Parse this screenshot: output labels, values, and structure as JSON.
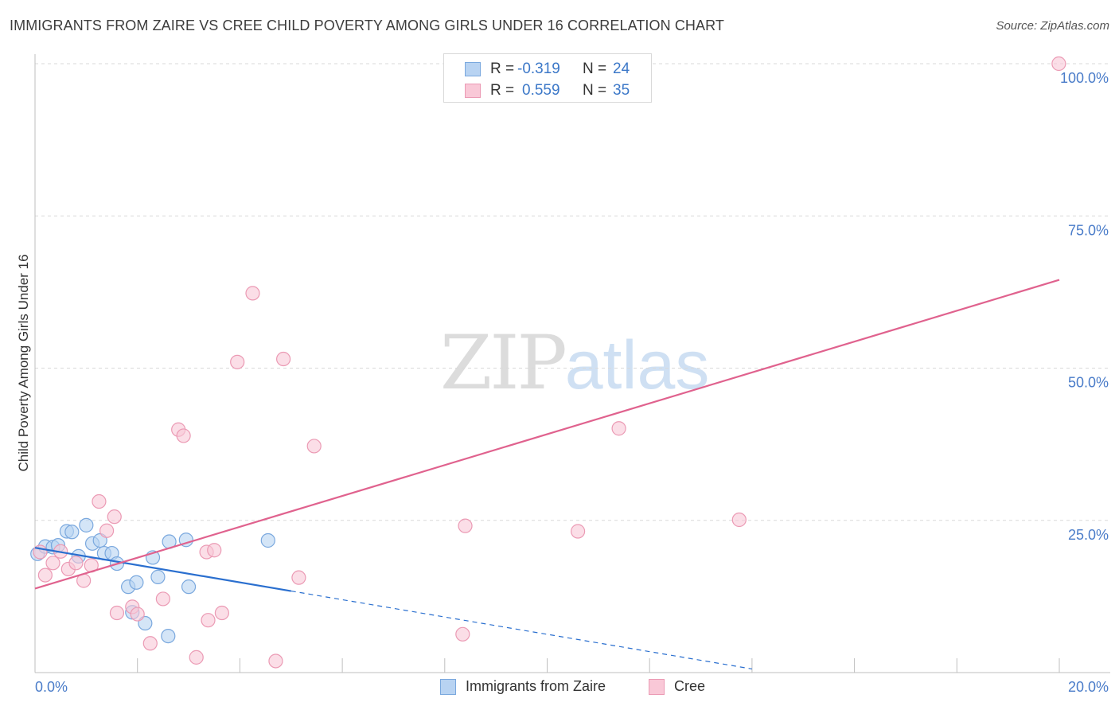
{
  "title": "IMMIGRANTS FROM ZAIRE VS CREE CHILD POVERTY AMONG GIRLS UNDER 16 CORRELATION CHART",
  "source": "Source: ZipAtlas.com",
  "watermark": {
    "zip": "ZIP",
    "atlas": "atlas"
  },
  "legend_top": [
    {
      "r_label": "R =",
      "r_value": "-0.319",
      "n_label": "N =",
      "n_value": "24"
    },
    {
      "r_label": "R =",
      "r_value": "0.559",
      "n_label": "N =",
      "n_value": "35"
    }
  ],
  "colors": {
    "zaire_fill": "#b8d3f2",
    "zaire_stroke": "#7aa8de",
    "zaire_line": "#2a6fcf",
    "cree_fill": "#f9c8d7",
    "cree_stroke": "#eb9ab4",
    "cree_line": "#e0628e",
    "grid": "#d9d9d9",
    "axis_text": "#4a7cc9"
  },
  "chart_data": {
    "type": "scatter",
    "title": "IMMIGRANTS FROM ZAIRE VS CREE CHILD POVERTY AMONG GIRLS UNDER 16 CORRELATION CHART",
    "xlabel": "",
    "ylabel": "Child Poverty Among Girls Under 16",
    "xlim": [
      0,
      20
    ],
    "ylim": [
      0,
      100
    ],
    "x_tick_labels": [
      {
        "value": 0,
        "label": "0.0%"
      },
      {
        "value": 20,
        "label": "20.0%"
      }
    ],
    "y_tick_labels": [
      {
        "value": 25,
        "label": "25.0%"
      },
      {
        "value": 50,
        "label": "50.0%"
      },
      {
        "value": 75,
        "label": "75.0%"
      },
      {
        "value": 100,
        "label": "100.0%"
      }
    ],
    "legend_position": "top-center",
    "series": [
      {
        "name": "Immigrants from Zaire",
        "key": "zaire",
        "r": -0.319,
        "n": 24,
        "points": [
          [
            0.05,
            19.5
          ],
          [
            0.2,
            20.7
          ],
          [
            0.35,
            20.6
          ],
          [
            0.45,
            20.9
          ],
          [
            0.62,
            23.2
          ],
          [
            0.72,
            23.1
          ],
          [
            0.85,
            19.1
          ],
          [
            1.0,
            24.2
          ],
          [
            1.12,
            21.2
          ],
          [
            1.27,
            21.7
          ],
          [
            1.35,
            19.6
          ],
          [
            1.5,
            19.6
          ],
          [
            1.6,
            17.9
          ],
          [
            1.82,
            14.1
          ],
          [
            1.9,
            9.9
          ],
          [
            1.98,
            14.8
          ],
          [
            2.15,
            8.1
          ],
          [
            2.3,
            18.9
          ],
          [
            2.4,
            15.7
          ],
          [
            2.6,
            6.0
          ],
          [
            2.62,
            21.5
          ],
          [
            2.95,
            21.8
          ],
          [
            3.0,
            14.1
          ],
          [
            4.55,
            21.7
          ]
        ],
        "trend": {
          "x_start": 0.0,
          "y_start": 20.5,
          "x_solid_end": 5.0,
          "x_end": 14.0,
          "y_end": 0.6
        }
      },
      {
        "name": "Cree",
        "key": "cree",
        "r": 0.559,
        "n": 35,
        "points": [
          [
            0.1,
            19.8
          ],
          [
            0.2,
            16.0
          ],
          [
            0.35,
            18.0
          ],
          [
            0.5,
            19.9
          ],
          [
            0.65,
            17.0
          ],
          [
            0.8,
            18.0
          ],
          [
            0.95,
            15.1
          ],
          [
            1.1,
            17.6
          ],
          [
            1.25,
            28.1
          ],
          [
            1.4,
            23.3
          ],
          [
            1.55,
            25.6
          ],
          [
            1.6,
            9.8
          ],
          [
            1.9,
            10.8
          ],
          [
            2.0,
            9.6
          ],
          [
            2.25,
            4.8
          ],
          [
            2.5,
            12.1
          ],
          [
            2.8,
            39.9
          ],
          [
            2.9,
            38.9
          ],
          [
            3.15,
            2.5
          ],
          [
            3.35,
            19.8
          ],
          [
            3.38,
            8.6
          ],
          [
            3.5,
            20.1
          ],
          [
            3.65,
            9.8
          ],
          [
            3.95,
            51.0
          ],
          [
            4.25,
            62.3
          ],
          [
            4.7,
            1.9
          ],
          [
            4.85,
            51.5
          ],
          [
            5.15,
            15.6
          ],
          [
            5.45,
            37.2
          ],
          [
            8.35,
            6.3
          ],
          [
            8.4,
            24.1
          ],
          [
            10.6,
            23.2
          ],
          [
            11.4,
            40.1
          ],
          [
            13.75,
            25.1
          ],
          [
            19.99,
            100.0
          ]
        ],
        "trend": {
          "x_start": 0.0,
          "y_start": 13.8,
          "x_end": 20.0,
          "y_end": 64.5
        }
      }
    ]
  }
}
